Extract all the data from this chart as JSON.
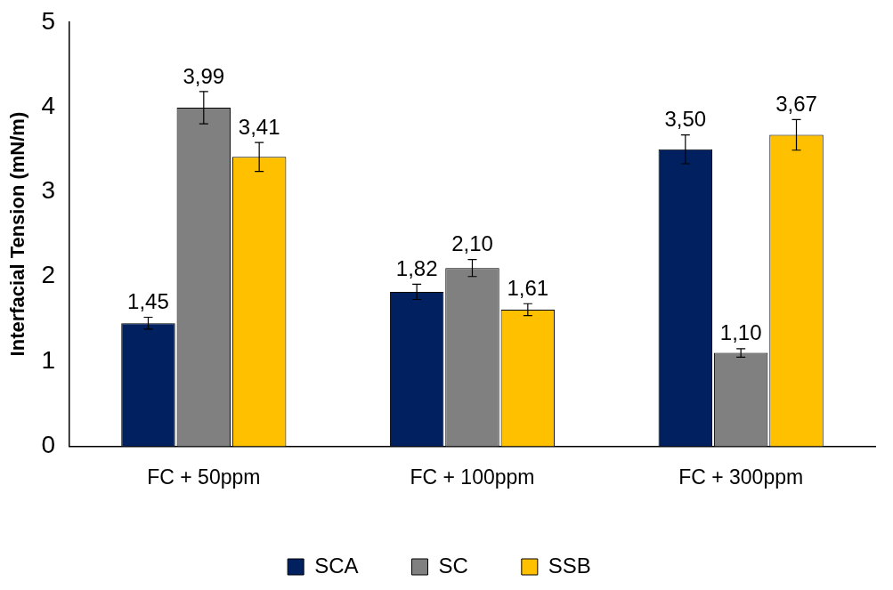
{
  "chart_data": {
    "type": "bar",
    "ylabel": "Interfacial Tension (mN/m)",
    "categories": [
      "FC + 50ppm",
      "FC + 100ppm",
      "FC + 300ppm"
    ],
    "series": [
      {
        "name": "SCA",
        "color": "#002060",
        "values": [
          1.45,
          1.82,
          3.5
        ],
        "errors": [
          0.07,
          0.09,
          0.17
        ],
        "value_labels": [
          "1,45",
          "1,82",
          "3,50"
        ]
      },
      {
        "name": "SC",
        "color": "#808080",
        "values": [
          3.99,
          2.1,
          1.1
        ],
        "errors": [
          0.19,
          0.1,
          0.05
        ],
        "value_labels": [
          "3,99",
          "2,10",
          "1,10"
        ]
      },
      {
        "name": "SSB",
        "color": "#ffc000",
        "values": [
          3.41,
          1.61,
          3.67
        ],
        "errors": [
          0.17,
          0.07,
          0.18
        ],
        "value_labels": [
          "3,41",
          "1,61",
          "3,67"
        ]
      }
    ],
    "ylim": [
      0,
      5
    ],
    "yticks": [
      0,
      1,
      2,
      3,
      4,
      5
    ],
    "grid": false,
    "legend": "bottom"
  }
}
